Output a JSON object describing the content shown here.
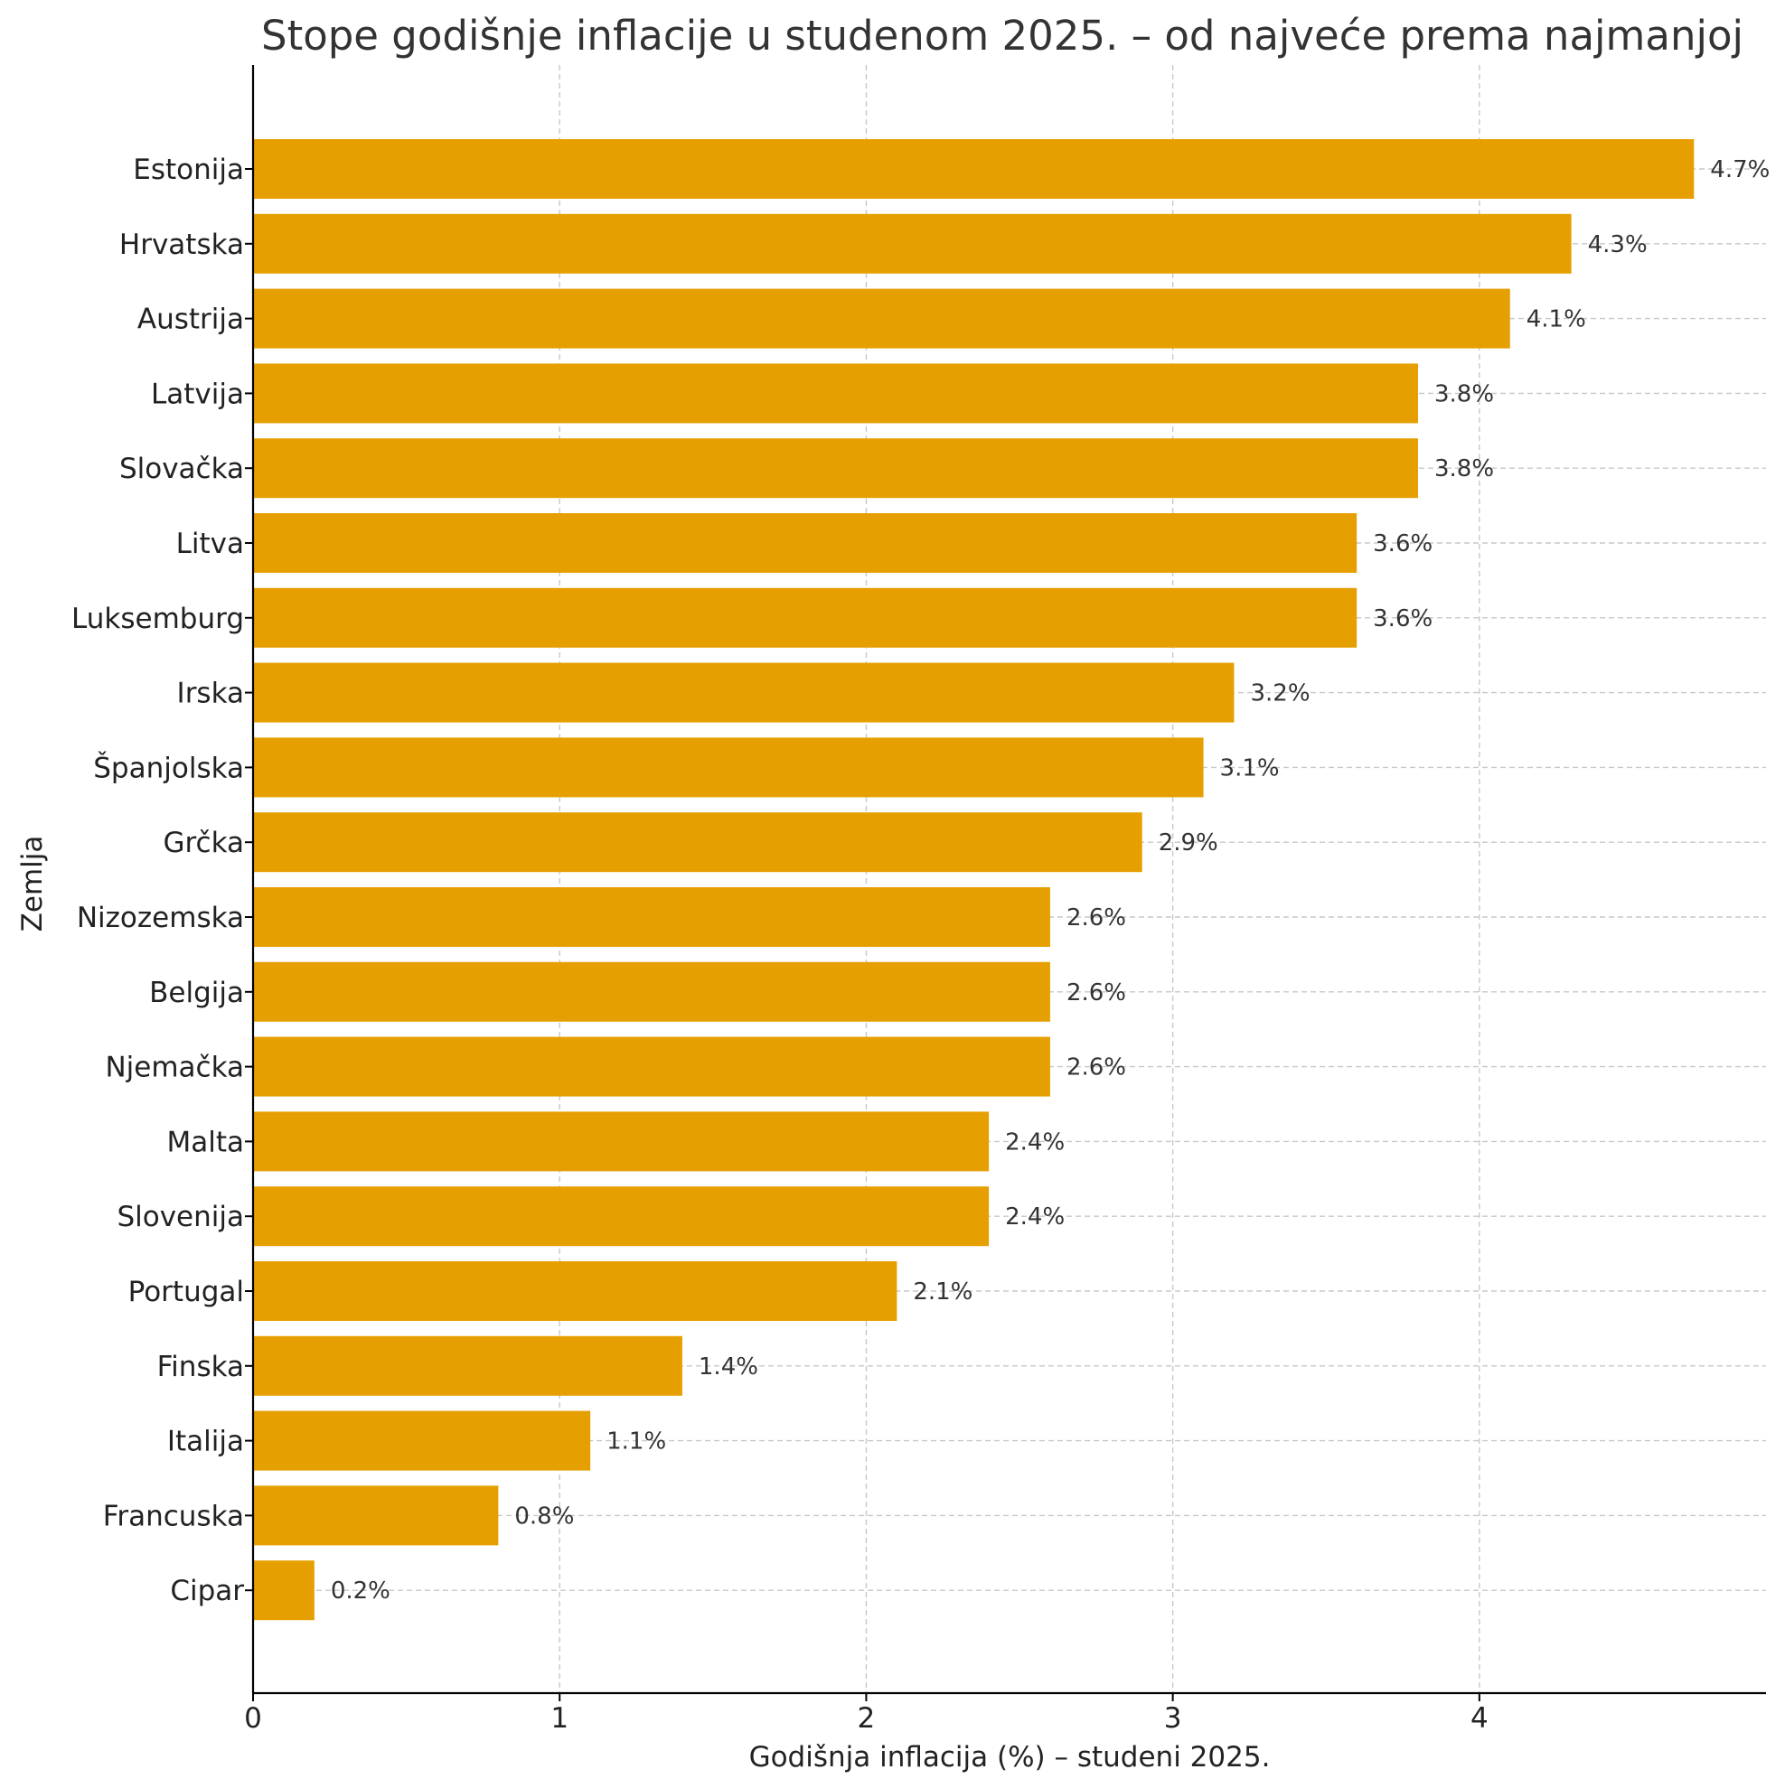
{
  "chart_data": {
    "type": "bar",
    "orientation": "horizontal",
    "title": "Stope godišnje inflacije u studenom 2025. – od najveće prema najmanjoj",
    "xlabel": "Godišnja inflacija (%) – studeni 2025.",
    "ylabel": "Zemlja",
    "xlim": [
      0,
      4.935
    ],
    "xticks": [
      0,
      1,
      2,
      3,
      4
    ],
    "xtick_labels": [
      "0",
      "1",
      "2",
      "3",
      "4"
    ],
    "grid": "on",
    "bar_color": "#E69F00",
    "categories": [
      "Estonija",
      "Hrvatska",
      "Austrija",
      "Latvija",
      "Slovačka",
      "Litva",
      "Luksemburg",
      "Irska",
      "Španjolska",
      "Grčka",
      "Nizozemska",
      "Belgija",
      "Njemačka",
      "Malta",
      "Slovenija",
      "Portugal",
      "Finska",
      "Italija",
      "Francuska",
      "Cipar"
    ],
    "values": [
      4.7,
      4.3,
      4.1,
      3.8,
      3.8,
      3.6,
      3.6,
      3.2,
      3.1,
      2.9,
      2.6,
      2.6,
      2.6,
      2.4,
      2.4,
      2.1,
      1.4,
      1.1,
      0.8,
      0.2
    ],
    "data_labels": [
      "4.7%",
      "4.3%",
      "4.1%",
      "3.8%",
      "3.8%",
      "3.6%",
      "3.6%",
      "3.2%",
      "3.1%",
      "2.9%",
      "2.6%",
      "2.6%",
      "2.6%",
      "2.4%",
      "2.4%",
      "2.1%",
      "1.4%",
      "1.1%",
      "0.8%",
      "0.2%"
    ]
  }
}
